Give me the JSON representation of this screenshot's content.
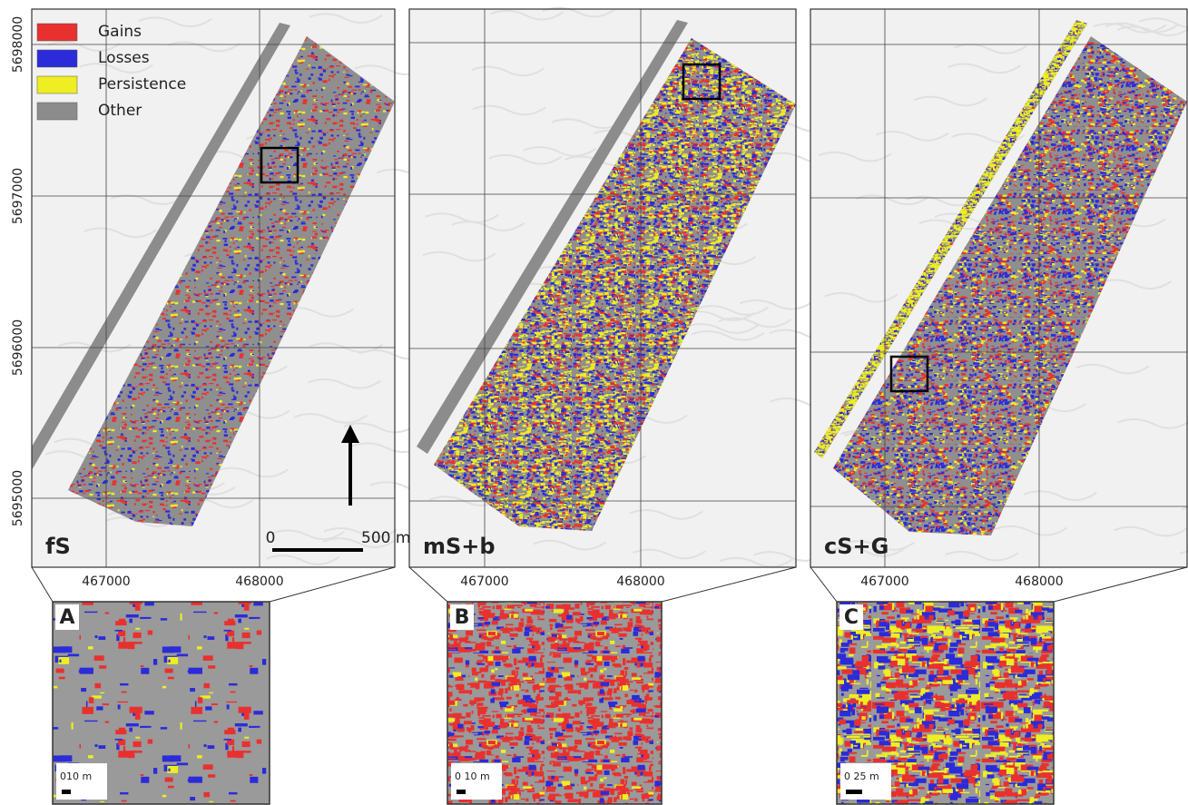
{
  "legend": [
    {
      "label": "Gains",
      "color": "#e8312f"
    },
    {
      "label": "Losses",
      "color": "#2b2bd9"
    },
    {
      "label": "Persistence",
      "color": "#eeee22"
    },
    {
      "label": "Other",
      "color": "#8c8c8c"
    }
  ],
  "y_axis_labels": [
    "5698000",
    "5697000",
    "5696000",
    "5695000"
  ],
  "x_axis_labels": [
    "467000",
    "468000"
  ],
  "panels": [
    {
      "label": "fS",
      "inset": "A",
      "inset_scale": "010 m"
    },
    {
      "label": "mS+b",
      "inset": "B",
      "inset_scale": "0 10 m"
    },
    {
      "label": "cS+G",
      "inset": "C",
      "inset_scale": "0 25 m"
    }
  ],
  "scale_bar": {
    "start": "0",
    "end": "500 m"
  }
}
